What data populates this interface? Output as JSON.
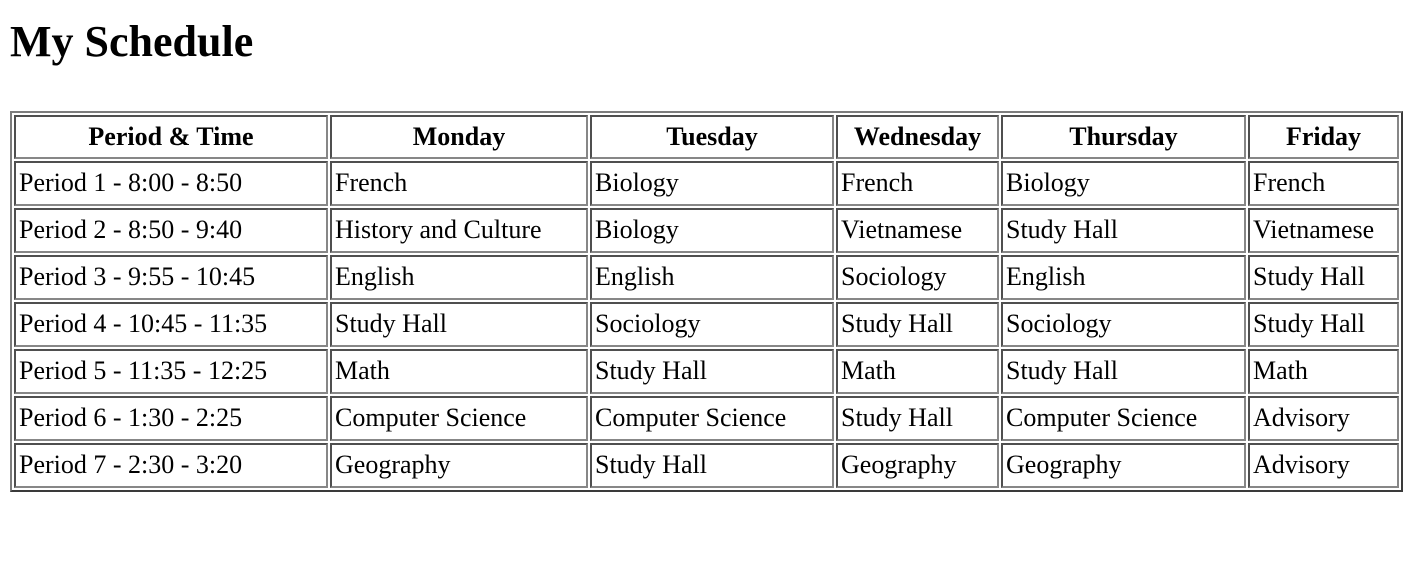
{
  "page": {
    "title": "My Schedule"
  },
  "schedule_table": {
    "columns": [
      "Period & Time",
      "Monday",
      "Tuesday",
      "Wednesday",
      "Thursday",
      "Friday"
    ],
    "rows": [
      [
        "Period 1 - 8:00 - 8:50",
        "French",
        "Biology",
        "French",
        "Biology",
        "French"
      ],
      [
        "Period 2 - 8:50 - 9:40",
        "History and Culture",
        "Biology",
        "Vietnamese",
        "Study Hall",
        "Vietnamese"
      ],
      [
        "Period 3 - 9:55 - 10:45",
        "English",
        "English",
        "Sociology",
        "English",
        "Study Hall"
      ],
      [
        "Period 4 - 10:45 - 11:35",
        "Study Hall",
        "Sociology",
        "Study Hall",
        "Sociology",
        "Study Hall"
      ],
      [
        "Period 5 - 11:35 - 12:25",
        "Math",
        "Study Hall",
        "Math",
        "Study Hall",
        "Math"
      ],
      [
        "Period 6 - 1:30 - 2:25",
        "Computer Science",
        "Computer Science",
        "Study Hall",
        "Computer Science",
        "Advisory"
      ],
      [
        "Period 7 - 2:30 - 3:20",
        "Geography",
        "Study Hall",
        "Geography",
        "Geography",
        "Advisory"
      ]
    ]
  }
}
